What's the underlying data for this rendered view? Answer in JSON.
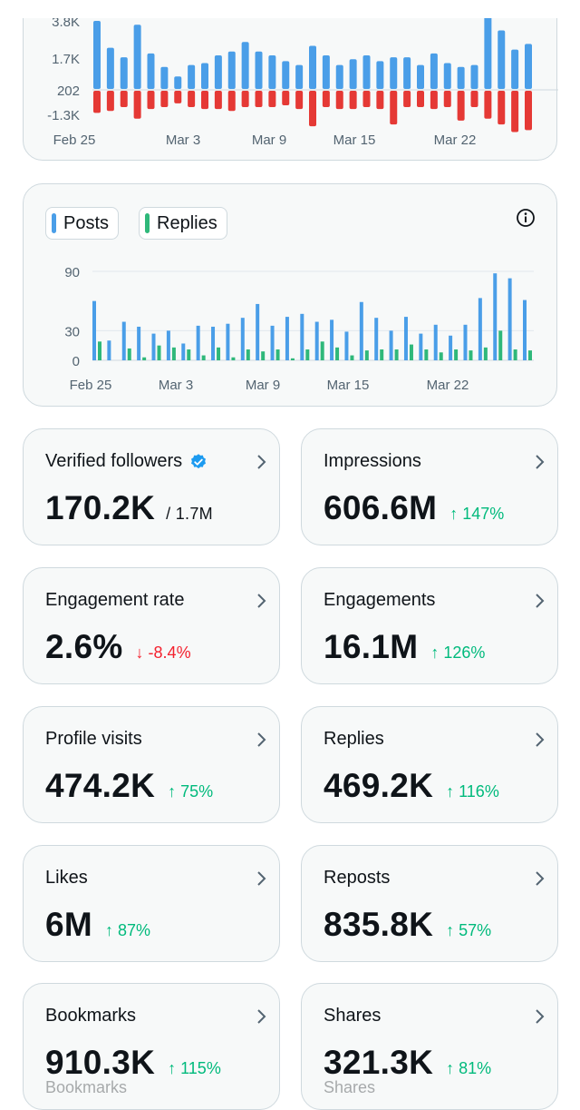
{
  "net_chart": {
    "type": "bar",
    "y_ticks": [
      "3.8K",
      "1.7K",
      "202",
      "-1.3K"
    ],
    "x_ticks": [
      "Feb 25",
      "Mar 3",
      "Mar 9",
      "Mar 15",
      "Mar 22"
    ],
    "gained_color": "#4a9ee8",
    "lost_color": "#e53935",
    "gained": [
      3800,
      2400,
      1900,
      3600,
      2100,
      1400,
      900,
      1500,
      1600,
      2000,
      2200,
      2700,
      2200,
      2000,
      1700,
      1500,
      2500,
      2000,
      1500,
      1800,
      2000,
      1700,
      1900,
      1900,
      1500,
      2100,
      1600,
      1400,
      1500,
      4800,
      3300,
      2300,
      2600
    ],
    "lost": [
      -1000,
      -900,
      -700,
      -1300,
      -800,
      -700,
      -500,
      -700,
      -800,
      -800,
      -900,
      -700,
      -700,
      -700,
      -600,
      -800,
      -1700,
      -700,
      -800,
      -800,
      -700,
      -800,
      -1600,
      -700,
      -700,
      -800,
      -700,
      -1400,
      -700,
      -1300,
      -1600,
      -2000,
      -1900
    ]
  },
  "posts_chart": {
    "type": "bar",
    "legend": [
      {
        "label": "Posts",
        "color": "#4a9ee8"
      },
      {
        "label": "Replies",
        "color": "#2fb87a"
      }
    ],
    "y_ticks": [
      "90",
      "30",
      "0"
    ],
    "x_ticks": [
      "Feb 25",
      "Mar 3",
      "Mar 9",
      "Mar 15",
      "Mar 22"
    ],
    "ylim": [
      0,
      90
    ],
    "series": [
      {
        "name": "Posts",
        "values": [
          60,
          20,
          39,
          34,
          27,
          30,
          17,
          35,
          34,
          37,
          43,
          57,
          35,
          44,
          47,
          39,
          41,
          29,
          59,
          43,
          30,
          44,
          27,
          36,
          25,
          36,
          63,
          88,
          83,
          61
        ]
      },
      {
        "name": "Replies",
        "values": [
          19,
          0,
          12,
          3,
          15,
          13,
          11,
          5,
          13,
          3,
          11,
          9,
          11,
          2,
          11,
          19,
          13,
          5,
          10,
          11,
          11,
          16,
          11,
          8,
          11,
          10,
          13,
          30,
          11,
          10
        ]
      }
    ]
  },
  "metrics": [
    {
      "label": "Verified followers",
      "value": "170.2K",
      "sub": "/ 1.7M",
      "verified": true
    },
    {
      "label": "Impressions",
      "value": "606.6M",
      "delta": "↑ 147%",
      "trend": "up"
    },
    {
      "label": "Engagement rate",
      "value": "2.6%",
      "delta": "↓ -8.4%",
      "trend": "down"
    },
    {
      "label": "Engagements",
      "value": "16.1M",
      "delta": "↑ 126%",
      "trend": "up"
    },
    {
      "label": "Profile visits",
      "value": "474.2K",
      "delta": "↑ 75%",
      "trend": "up"
    },
    {
      "label": "Replies",
      "value": "469.2K",
      "delta": "↑ 116%",
      "trend": "up"
    },
    {
      "label": "Likes",
      "value": "6M",
      "delta": "↑ 87%",
      "trend": "up"
    },
    {
      "label": "Reposts",
      "value": "835.8K",
      "delta": "↑ 57%",
      "trend": "up"
    },
    {
      "label": "Bookmarks",
      "value": "910.3K",
      "delta": "↑ 115%",
      "trend": "up"
    },
    {
      "label": "Shares",
      "value": "321.3K",
      "delta": "↑ 81%",
      "trend": "up"
    }
  ],
  "ghost_labels": [
    "Bookmarks",
    "Shares"
  ]
}
